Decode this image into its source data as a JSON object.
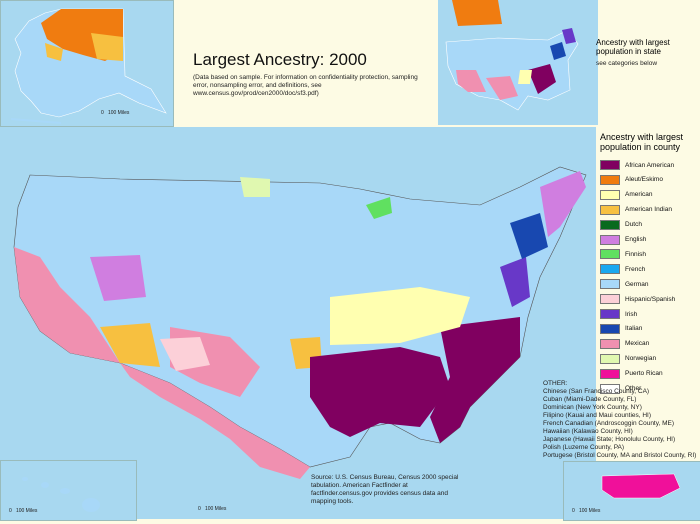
{
  "map": {
    "title": "Largest Ancestry: 2000",
    "subtitle": "(Data based on sample. For information on confidentiality protection, sampling error, nonsampling error, and definitions, see www.census.gov/prod/cen2000/doc/sf3.pdf)",
    "state_inset_title": "Ancestry with largest population in state",
    "state_inset_note": "see categories below",
    "legend_title": "Ancestry with largest population in county",
    "legend": [
      {
        "label": "African American",
        "color": "#800060"
      },
      {
        "label": "Aleut/Eskimo",
        "color": "#f07c10"
      },
      {
        "label": "American",
        "color": "#ffffb0"
      },
      {
        "label": "American Indian",
        "color": "#f7c040"
      },
      {
        "label": "Dutch",
        "color": "#0a6a1e"
      },
      {
        "label": "English",
        "color": "#d07ee0"
      },
      {
        "label": "Finnish",
        "color": "#60e060"
      },
      {
        "label": "French",
        "color": "#1aa8f0"
      },
      {
        "label": "German",
        "color": "#a8d8f8"
      },
      {
        "label": "Hispanic/Spanish",
        "color": "#fcd0d8"
      },
      {
        "label": "Irish",
        "color": "#6838c8"
      },
      {
        "label": "Italian",
        "color": "#1848b0"
      },
      {
        "label": "Mexican",
        "color": "#f090b0"
      },
      {
        "label": "Norwegian",
        "color": "#e0f8b0"
      },
      {
        "label": "Puerto Rican",
        "color": "#f0109a"
      },
      {
        "label": "Other",
        "color": "#ffffff"
      }
    ],
    "other_title": "OTHER:",
    "other_items": [
      "Chinese (San Francisco County, CA)",
      "Cuban (Miami-Dade County, FL)",
      "Dominican (New York County, NY)",
      "Filipino (Kauai and Maui counties, HI)",
      "French Canadian (Androscoggin County, ME)",
      "Hawaiian (Kalawao County, HI)",
      "Japanese (Hawaii State; Honolulu County, HI)",
      "Polish (Luzerne County, PA)",
      "Portugese (Bristol County, MA and Bristol County, RI)"
    ],
    "source": "Source: U.S. Census Bureau, Census 2000 special tabulation. American Factfinder at factfinder.census.gov provides census data and mapping tools.",
    "scale_label": "100 Miles",
    "scale_zero": "0"
  }
}
